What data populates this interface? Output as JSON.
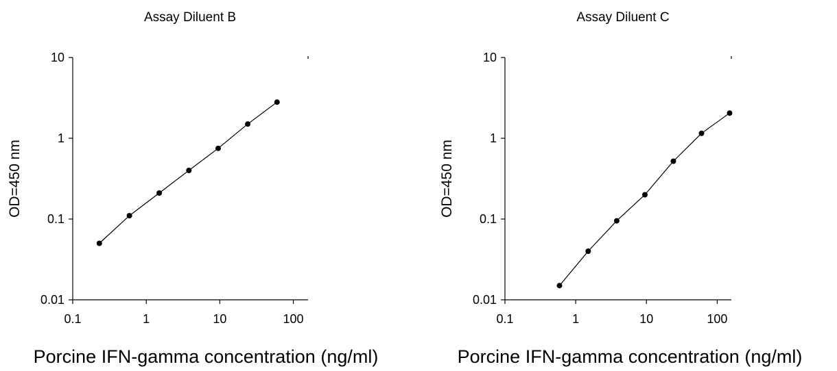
{
  "chart_data": [
    {
      "type": "line",
      "title": "Assay Diluent B",
      "xlabel": "Porcine IFN-gamma concentration (ng/ml)",
      "ylabel": "OD=450 nm",
      "xscale": "log",
      "yscale": "log",
      "xlim": [
        0.1,
        100
      ],
      "ylim": [
        0.01,
        10
      ],
      "xticks": [
        "0.1",
        "1",
        "10",
        "100"
      ],
      "yticks": [
        "0.01",
        "0.1",
        "1",
        "10"
      ],
      "grid": false,
      "series": [
        {
          "x": [
            0.23,
            0.59,
            1.5,
            3.8,
            9.5,
            24,
            60
          ],
          "y": [
            0.05,
            0.11,
            0.21,
            0.4,
            0.75,
            1.5,
            2.8
          ]
        }
      ]
    },
    {
      "type": "line",
      "title": "Assay Diluent C",
      "xlabel": "Porcine IFN-gamma concentration (ng/ml)",
      "ylabel": "OD=450 nm",
      "xscale": "log",
      "yscale": "log",
      "xlim": [
        0.1,
        100
      ],
      "ylim": [
        0.01,
        10
      ],
      "xticks": [
        "0.1",
        "1",
        "10",
        "100"
      ],
      "yticks": [
        "0.01",
        "0.1",
        "1",
        "10"
      ],
      "grid": false,
      "series": [
        {
          "x": [
            0.59,
            1.5,
            3.8,
            9.5,
            24,
            60,
            150
          ],
          "y": [
            0.015,
            0.04,
            0.095,
            0.2,
            0.52,
            1.15,
            2.05
          ]
        }
      ]
    }
  ]
}
